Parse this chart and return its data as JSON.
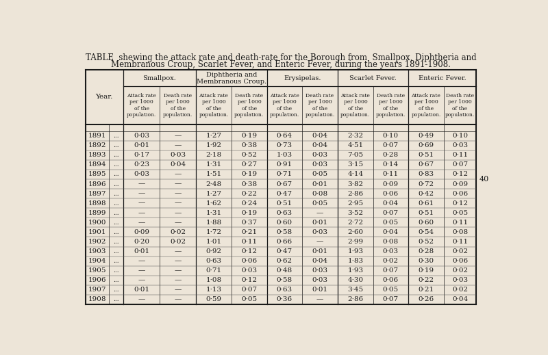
{
  "title_line1": "TABLE  shewing the attack rate and death-rate for the Borough from  Smallpox, Diphtheria and",
  "title_line2": "Membranous Croup, Scarlet Fever, and Enteric Fever, during the years 1891-1908.",
  "bg_color": "#ede5d8",
  "text_color": "#1a1a1a",
  "col_groups": [
    "Smallpox.",
    "Diphtheria and\nMembranous Croup.",
    "Erysipelas.",
    "Scarlet Fever.",
    "Enteric Fever."
  ],
  "years": [
    1891,
    1892,
    1893,
    1894,
    1895,
    1896,
    1897,
    1898,
    1899,
    1900,
    1901,
    1902,
    1903,
    1904,
    1905,
    1906,
    1907,
    1908
  ],
  "data": [
    [
      "0·03",
      "—",
      "1·27",
      "0·19",
      "0·64",
      "0·04",
      "2·32",
      "0·10",
      "0·49",
      "0·10"
    ],
    [
      "0·01",
      "—",
      "1·92",
      "0·38",
      "0·73",
      "0·04",
      "4·51",
      "0·07",
      "0·69",
      "0·03"
    ],
    [
      "0·17",
      "0·03",
      "2·18",
      "0·52",
      "1·03",
      "0·03",
      "7·05",
      "0·28",
      "0·51",
      "0·11"
    ],
    [
      "0·23",
      "0·04",
      "1·31",
      "0·27",
      "0·91",
      "0·03",
      "3·15",
      "0·14",
      "0·67",
      "0·07"
    ],
    [
      "0·03",
      "—",
      "1·51",
      "0·19",
      "0·71",
      "0·05",
      "4·14",
      "0·11",
      "0·83",
      "0·12"
    ],
    [
      "—",
      "—",
      "2·48",
      "0·38",
      "0·67",
      "0·01",
      "3·82",
      "0·09",
      "0·72",
      "0·09"
    ],
    [
      "—",
      "—",
      "1·27",
      "0·22",
      "0·47",
      "0·08",
      "2·86",
      "0·06",
      "0·42",
      "0·06"
    ],
    [
      "—",
      "—",
      "1·62",
      "0·24",
      "0·51",
      "0·05",
      "2·95",
      "0·04",
      "0·61",
      "0·12"
    ],
    [
      "—",
      "—",
      "1·31",
      "0·19",
      "0·63",
      "—",
      "3·52",
      "0·07",
      "0·51",
      "0·05"
    ],
    [
      "—",
      "—",
      "1·88",
      "0·37",
      "0·60",
      "0·01",
      "2·72",
      "0·05",
      "0·60",
      "0·11"
    ],
    [
      "0·09",
      "0·02",
      "1·72",
      "0·21",
      "0·58",
      "0·03",
      "2·60",
      "0·04",
      "0·54",
      "0·08"
    ],
    [
      "0·20",
      "0·02",
      "1·01",
      "0·11",
      "0·66",
      "—",
      "2·99",
      "0·08",
      "0·52",
      "0·11"
    ],
    [
      "0·01",
      "—",
      "0·92",
      "0·12",
      "0·47",
      "0·01",
      "1·93",
      "0·03",
      "0·28",
      "0·02"
    ],
    [
      "—",
      "—",
      "0·63",
      "0·06",
      "0·62",
      "0·04",
      "1·83",
      "0·02",
      "0·30",
      "0·06"
    ],
    [
      "—",
      "—",
      "0·71",
      "0·03",
      "0·48",
      "0·03",
      "1·93",
      "0·07",
      "0·19",
      "0·02"
    ],
    [
      "—",
      "—",
      "1·08",
      "0·12",
      "0·58",
      "0·03",
      "4·30",
      "0·06",
      "0·22",
      "0·03"
    ],
    [
      "0·01",
      "—",
      "1·13",
      "0·07",
      "0·63",
      "0·01",
      "3·45",
      "0·05",
      "0·21",
      "0·02"
    ],
    [
      "—",
      "—",
      "0·59",
      "0·05",
      "0·36",
      "—",
      "2·86",
      "0·07",
      "0·26",
      "0·04"
    ]
  ],
  "page_number": "40"
}
